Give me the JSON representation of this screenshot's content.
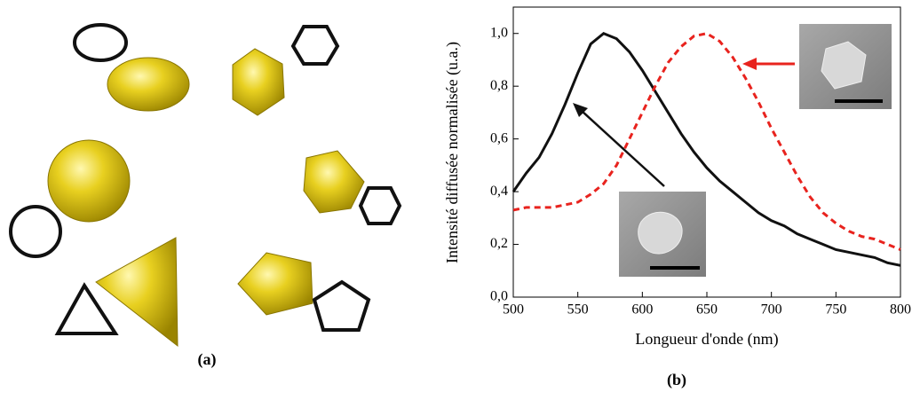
{
  "panels": {
    "a": "(a)",
    "b": "(b)"
  },
  "chart_data": {
    "type": "line",
    "x_label": "Longueur d'onde (nm)",
    "y_label": "Intensité diffusée normalisée (u.a.)",
    "xlim": [
      500,
      800
    ],
    "ylim": [
      0,
      1.1
    ],
    "xticks": [
      500,
      550,
      600,
      650,
      700,
      750,
      800
    ],
    "yticks": [
      {
        "value": 0,
        "label": "0,0"
      },
      {
        "value": 0.2,
        "label": "0,2"
      },
      {
        "value": 0.4,
        "label": "0,4"
      },
      {
        "value": 0.6,
        "label": "0,6"
      },
      {
        "value": 0.8,
        "label": "0,8"
      },
      {
        "value": 1.0,
        "label": "1,0"
      }
    ],
    "x": [
      500,
      510,
      520,
      530,
      540,
      550,
      560,
      570,
      580,
      590,
      600,
      610,
      620,
      630,
      640,
      650,
      660,
      670,
      680,
      690,
      700,
      710,
      720,
      730,
      740,
      750,
      760,
      770,
      780,
      790,
      800
    ],
    "series": [
      {
        "color": "#111111",
        "dashed": false,
        "values": [
          0.4,
          0.47,
          0.53,
          0.62,
          0.73,
          0.85,
          0.96,
          1.0,
          0.98,
          0.93,
          0.86,
          0.78,
          0.7,
          0.62,
          0.55,
          0.49,
          0.44,
          0.4,
          0.36,
          0.32,
          0.29,
          0.27,
          0.24,
          0.22,
          0.2,
          0.18,
          0.17,
          0.16,
          0.15,
          0.13,
          0.12
        ]
      },
      {
        "color": "#e8231e",
        "dashed": true,
        "values": [
          0.33,
          0.34,
          0.34,
          0.34,
          0.35,
          0.36,
          0.39,
          0.43,
          0.5,
          0.6,
          0.7,
          0.8,
          0.89,
          0.95,
          0.99,
          1.0,
          0.97,
          0.91,
          0.83,
          0.74,
          0.64,
          0.55,
          0.46,
          0.38,
          0.32,
          0.28,
          0.25,
          0.23,
          0.22,
          0.2,
          0.18
        ]
      }
    ]
  }
}
